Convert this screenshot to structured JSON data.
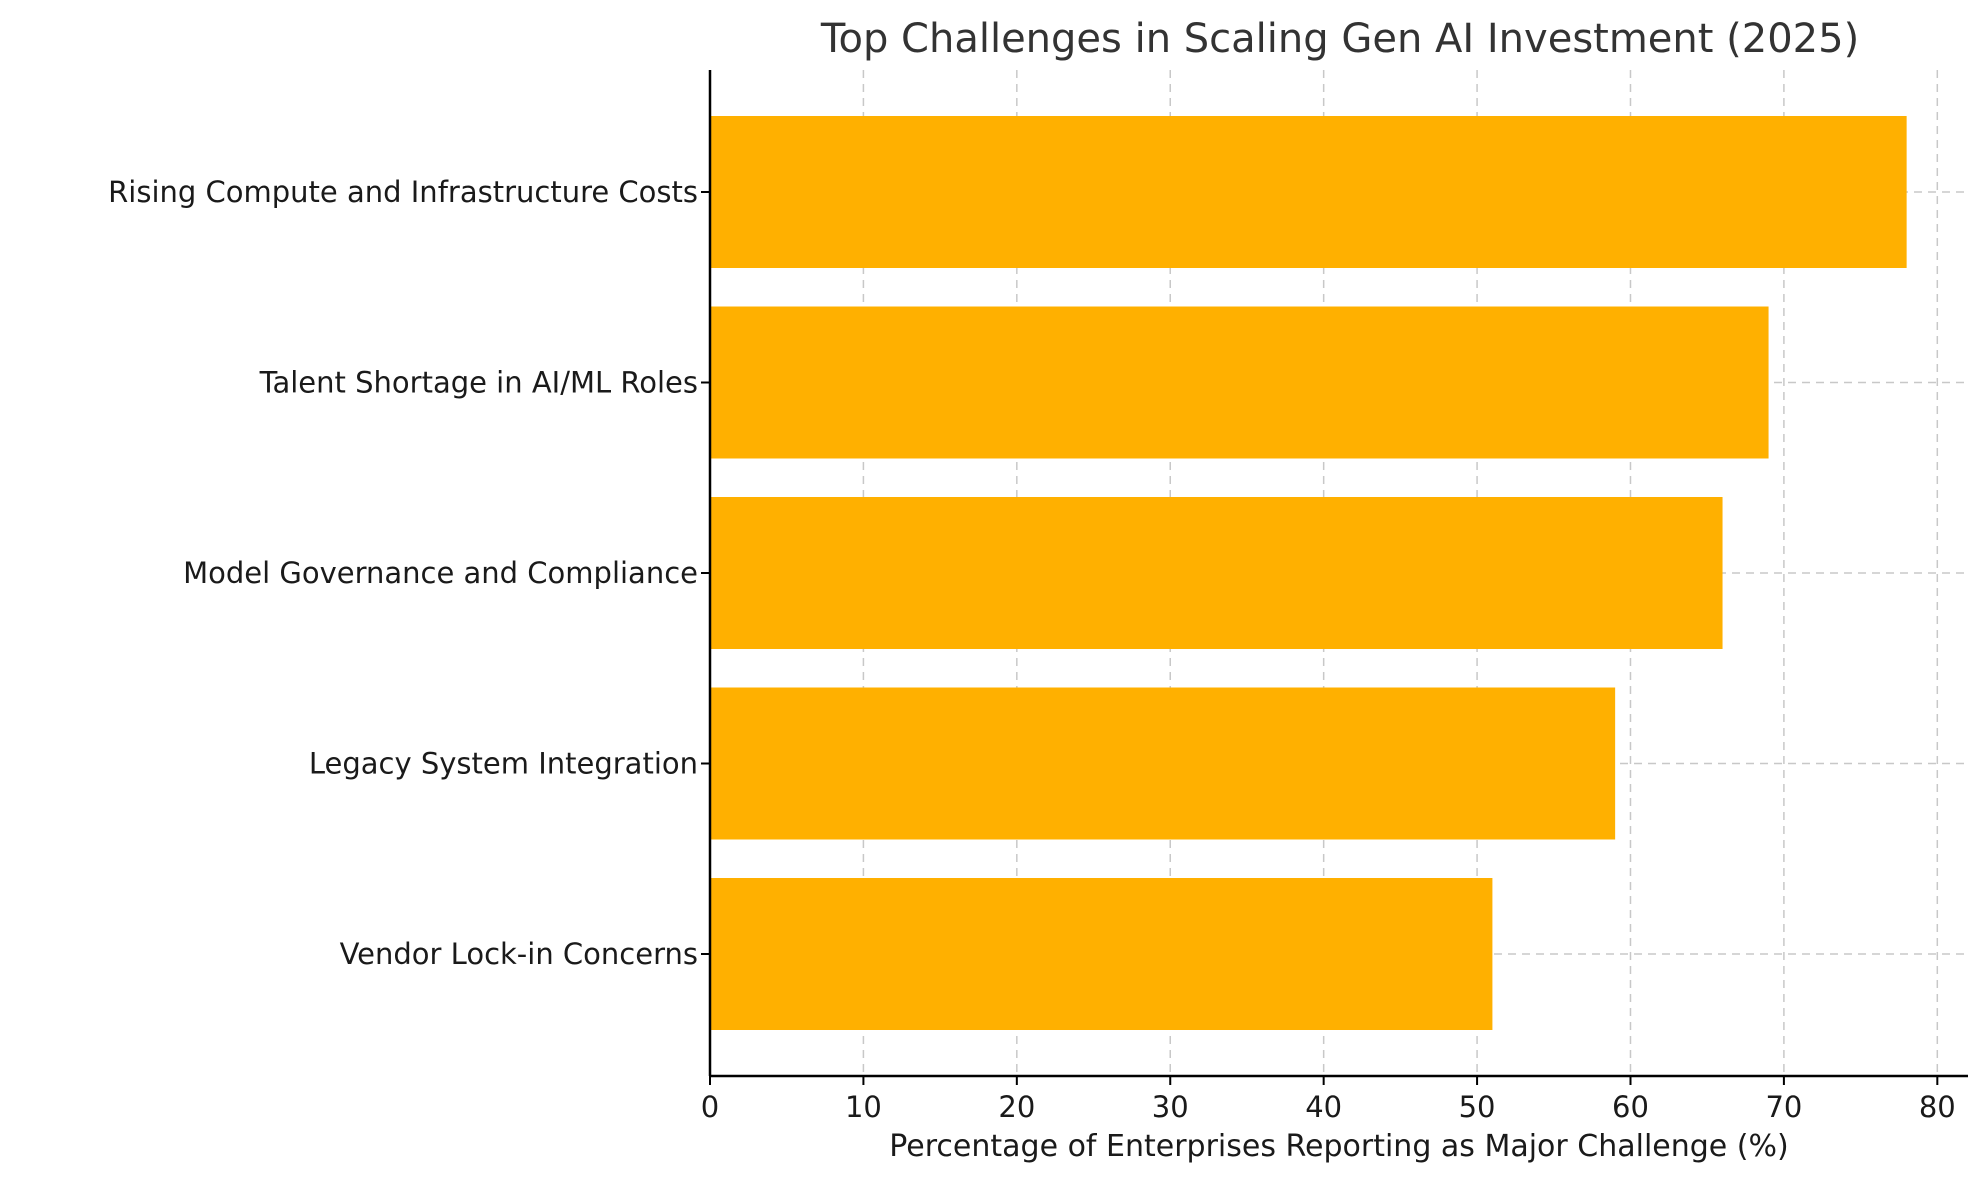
{
  "chart_data": {
    "type": "bar",
    "orientation": "horizontal",
    "title": "Top Challenges in Scaling Gen AI Investment (2025)",
    "xlabel": "Percentage of Enterprises Reporting as Major Challenge (%)",
    "ylabel": "",
    "categories": [
      "Rising Compute and Infrastructure Costs",
      "Talent Shortage in AI/ML Roles",
      "Model Governance and Compliance",
      "Legacy System Integration",
      "Vendor Lock-in Concerns"
    ],
    "values": [
      78,
      69,
      66,
      59,
      51
    ],
    "xlim": [
      0,
      82
    ],
    "xticks": [
      0,
      10,
      20,
      30,
      40,
      50,
      60,
      70,
      80
    ],
    "grid": true,
    "legend": "none",
    "colors": {
      "bar": "#FFB000"
    }
  }
}
